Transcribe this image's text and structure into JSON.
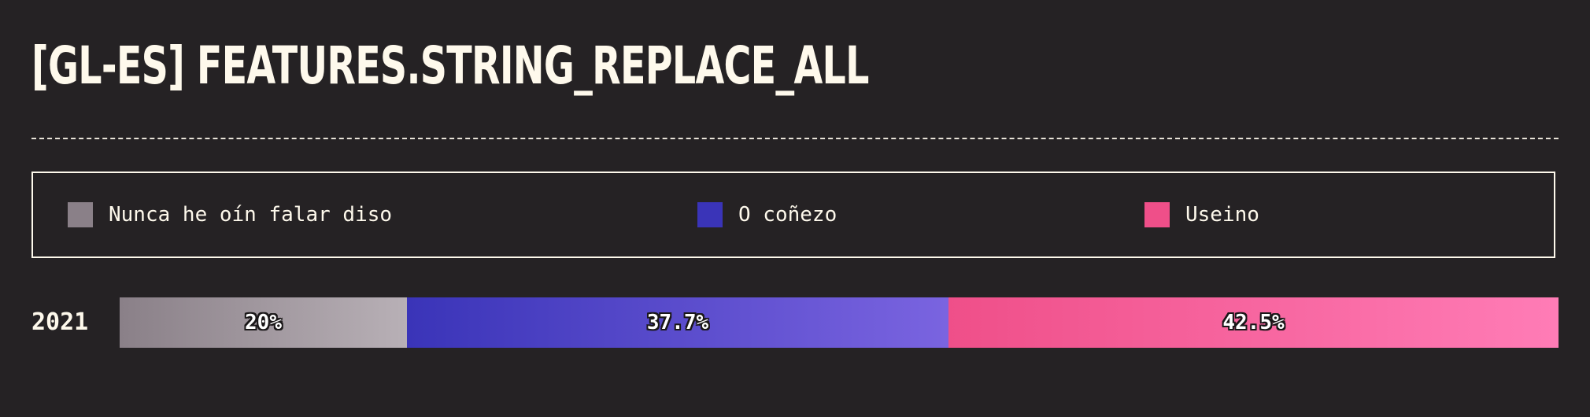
{
  "title": "[GL-ES] FEATURES.STRING_REPLACE_ALL",
  "legend": [
    {
      "label": "Nunca he oín falar diso",
      "color": "#8a8088"
    },
    {
      "label": "O coñezo",
      "color": "#3a34b8"
    },
    {
      "label": "Useino",
      "color": "#ef4f89"
    }
  ],
  "chart_data": {
    "type": "bar",
    "orientation": "horizontal",
    "stacked": true,
    "normalized": true,
    "categories": [
      "2021"
    ],
    "series": [
      {
        "name": "Nunca he oín falar diso",
        "values": [
          20
        ],
        "label": "20%",
        "color_start": "#8a8088",
        "color_end": "#b8b0b6"
      },
      {
        "name": "O coñezo",
        "values": [
          37.7
        ],
        "label": "37.7%",
        "color_start": "#3a34b8",
        "color_end": "#7a64e0"
      },
      {
        "name": "Useino",
        "values": [
          42.5
        ],
        "label": "42.5%",
        "color_start": "#ef4f89",
        "color_end": "#ff7cb6"
      }
    ],
    "title": "[GL-ES] FEATURES.STRING_REPLACE_ALL",
    "xlabel": "",
    "ylabel": "",
    "xlim": [
      0,
      100
    ]
  }
}
